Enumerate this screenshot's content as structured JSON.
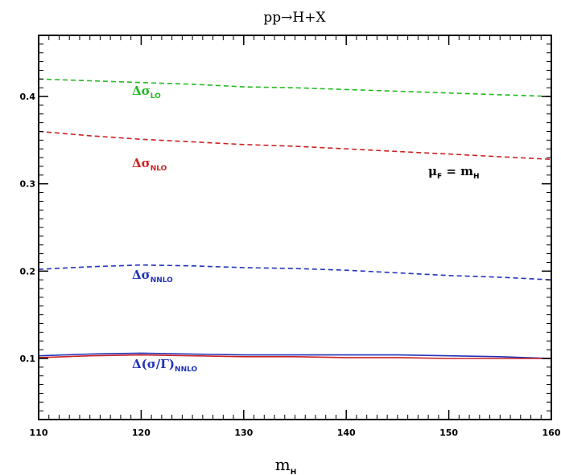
{
  "chart_data": {
    "type": "line",
    "title": "pp→H+X",
    "xlabel_main": "m",
    "xlabel_sub": "H",
    "ylabel": "",
    "xlim": [
      110,
      160
    ],
    "ylim": [
      0.03,
      0.47
    ],
    "x_ticks": [
      110,
      120,
      130,
      140,
      150,
      160
    ],
    "x_tick_labels": [
      "110",
      "120",
      "130",
      "140",
      "150",
      "160"
    ],
    "y_ticks": [
      0.1,
      0.2,
      0.3,
      0.4
    ],
    "y_tick_labels": [
      "0.1",
      "0.2",
      "0.3",
      "0.4"
    ],
    "grid": false,
    "annotation": {
      "main": "μ",
      "sub": "F",
      "rest": " = m",
      "sub2": "H"
    },
    "series": [
      {
        "label_main": "Δσ",
        "label_sub": "LO",
        "color": "#22bb22",
        "style": "dashed",
        "x": [
          110,
          115,
          120,
          125,
          130,
          135,
          140,
          145,
          150,
          155,
          160
        ],
        "y": [
          0.42,
          0.418,
          0.416,
          0.414,
          0.411,
          0.41,
          0.408,
          0.406,
          0.404,
          0.402,
          0.4
        ]
      },
      {
        "label_main": "Δσ",
        "label_sub": "NLO",
        "color": "#cc2222",
        "style": "dashed",
        "x": [
          110,
          115,
          120,
          125,
          130,
          135,
          140,
          145,
          150,
          155,
          160
        ],
        "y": [
          0.36,
          0.355,
          0.351,
          0.348,
          0.345,
          0.343,
          0.34,
          0.337,
          0.334,
          0.331,
          0.328
        ]
      },
      {
        "label_main": "Δσ",
        "label_sub": "NNLO",
        "color": "#2233bb",
        "style": "dashed",
        "x": [
          110,
          115,
          120,
          125,
          130,
          135,
          140,
          145,
          150,
          155,
          160
        ],
        "y": [
          0.202,
          0.205,
          0.207,
          0.206,
          0.204,
          0.203,
          0.201,
          0.198,
          0.195,
          0.193,
          0.19
        ]
      },
      {
        "label_main": "Δ(σ/Γ)",
        "label_sub": "NNLO",
        "color": "#2233bb",
        "style": "solid",
        "x": [
          110,
          115,
          120,
          125,
          130,
          135,
          140,
          145,
          150,
          155,
          160
        ],
        "y": [
          0.103,
          0.105,
          0.106,
          0.105,
          0.104,
          0.104,
          0.104,
          0.104,
          0.103,
          0.102,
          0.1
        ]
      },
      {
        "label_main": "",
        "label_sub": "",
        "color": "#cc2222",
        "style": "solid",
        "x": [
          110,
          115,
          120,
          125,
          130,
          135,
          140,
          145,
          150,
          155,
          160
        ],
        "y": [
          0.101,
          0.103,
          0.104,
          0.103,
          0.102,
          0.102,
          0.101,
          0.101,
          0.1,
          0.1,
          0.1
        ]
      }
    ]
  }
}
